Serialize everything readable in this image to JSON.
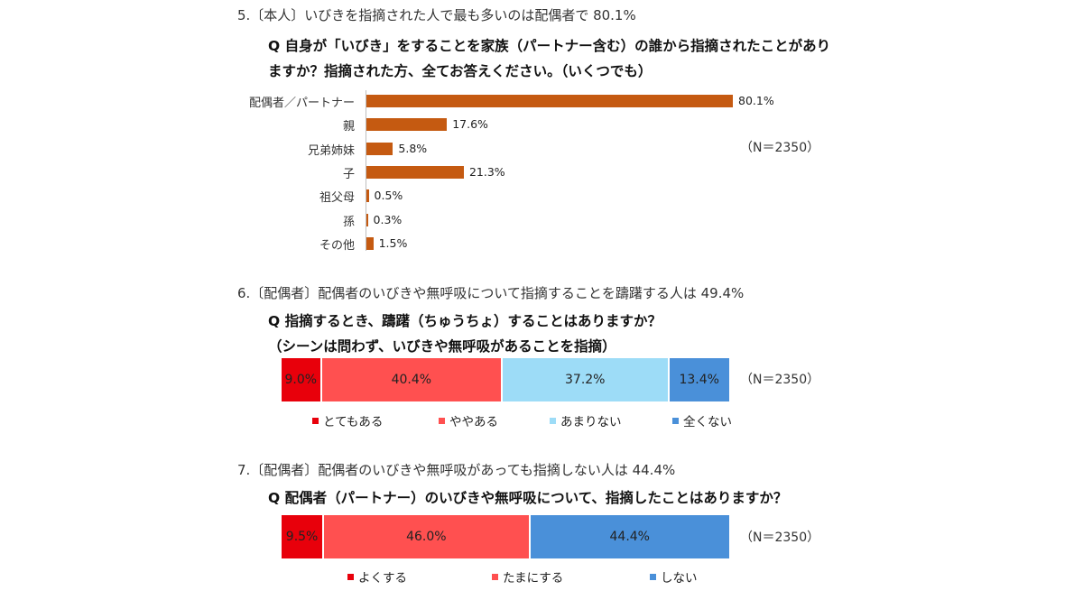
{
  "section5": {
    "heading": "5.〔本人〕いびきを指摘された人で最も多いのは配偶者で 80.1%",
    "question_line1": "Q 自身が「いびき」をすることを家族（パートナー含む）の誰から指摘されたことがあり",
    "question_line2": "ますか？指摘された方、全てお答えください。（いくつでも）",
    "n": "（N＝2350）"
  },
  "section6": {
    "heading": "6.〔配偶者〕配偶者のいびきや無呼吸について指摘することを躊躇する人は 49.4%",
    "question_line1": "Q 指摘するとき、躊躇（ちゅうちょ）することはありますか？",
    "question_line2": "（シーンは問わず、いびきや無呼吸があることを指摘）",
    "n": "（N＝2350）"
  },
  "section7": {
    "heading": "7.〔配偶者〕配偶者のいびきや無呼吸があっても指摘しない人は 44.4%",
    "question_line1": "Q 配偶者（パートナー）のいびきや無呼吸について、指摘したことはありますか？",
    "n": "（N＝2350）"
  },
  "chart_data": [
    {
      "type": "bar",
      "orientation": "horizontal",
      "categories": [
        "配偶者／パートナー",
        "親",
        "兄弟姉妹",
        "子",
        "祖父母",
        "孫",
        "その他"
      ],
      "values": [
        80.1,
        17.6,
        5.8,
        21.3,
        0.5,
        0.3,
        1.5
      ],
      "value_labels": [
        "80.1%",
        "17.6%",
        "5.8%",
        "21.3%",
        "0.5%",
        "0.3%",
        "1.5%"
      ],
      "color": "#c55a11",
      "xlim": [
        0,
        100
      ]
    },
    {
      "type": "bar",
      "stacked": true,
      "orientation": "horizontal",
      "series": [
        {
          "name": "とてもある",
          "value": 9.0,
          "label": "9.0%",
          "color": "#e8000b"
        },
        {
          "name": "ややある",
          "value": 40.4,
          "label": "40.4%",
          "color": "#ff5050"
        },
        {
          "name": "あまりない",
          "value": 37.2,
          "label": "37.2%",
          "color": "#9ddcf7"
        },
        {
          "name": "全くない",
          "value": 13.4,
          "label": "13.4%",
          "color": "#4a90d9"
        }
      ],
      "legend_position": "bottom"
    },
    {
      "type": "bar",
      "stacked": true,
      "orientation": "horizontal",
      "series": [
        {
          "name": "よくする",
          "value": 9.5,
          "label": "9.5%",
          "color": "#e8000b"
        },
        {
          "name": "たまにする",
          "value": 46.0,
          "label": "46.0%",
          "color": "#ff5050"
        },
        {
          "name": "しない",
          "value": 44.4,
          "label": "44.4%",
          "color": "#4a90d9"
        }
      ],
      "legend_position": "bottom"
    }
  ]
}
